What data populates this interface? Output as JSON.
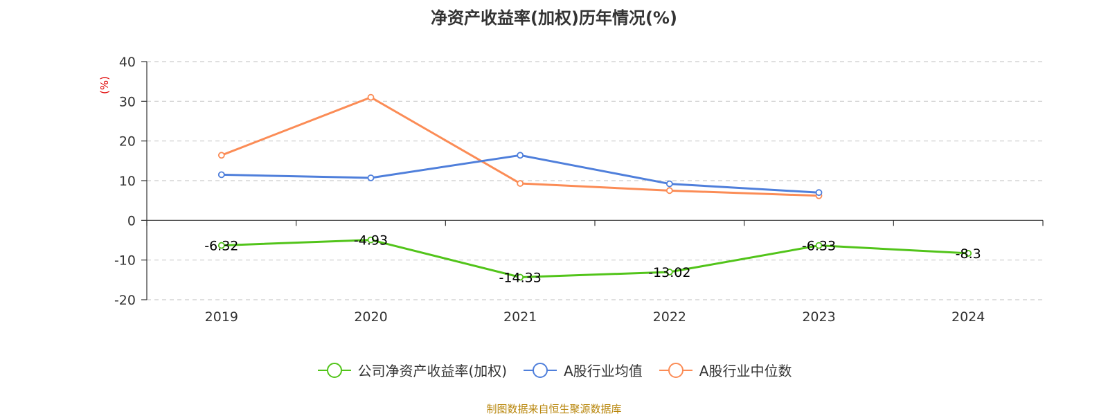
{
  "chart_data": {
    "type": "line",
    "title": "净资产收益率(加权)历年情况(%)",
    "ylabel": "(%)",
    "categories": [
      "2019",
      "2020",
      "2021",
      "2022",
      "2023",
      "2024"
    ],
    "ylim": [
      -20,
      40
    ],
    "yticks": [
      40,
      30,
      20,
      10,
      0,
      -10,
      -20
    ],
    "grid": true,
    "legend_position": "bottom",
    "series": [
      {
        "name": "公司净资产收益率(加权)",
        "color": "#52c41a",
        "values": [
          -6.32,
          -4.93,
          -14.33,
          -13.02,
          -6.33,
          -8.3
        ],
        "labels": [
          "-6.32",
          "-4.93",
          "-14.33",
          "-13.02",
          "-6.33",
          "-8.3"
        ]
      },
      {
        "name": "A股行业均值",
        "color": "#4f7fdb",
        "values": [
          11.5,
          10.7,
          16.4,
          9.2,
          7.0,
          null
        ]
      },
      {
        "name": "A股行业中位数",
        "color": "#fb8c56",
        "values": [
          16.4,
          31.0,
          9.3,
          7.5,
          6.2,
          null
        ]
      }
    ]
  },
  "source_note": "制图数据来自恒生聚源数据库",
  "colors": {
    "unit_label": "#e00000",
    "source_note": "#b8860b",
    "grid": "#cccccc",
    "axis": "#333333"
  }
}
